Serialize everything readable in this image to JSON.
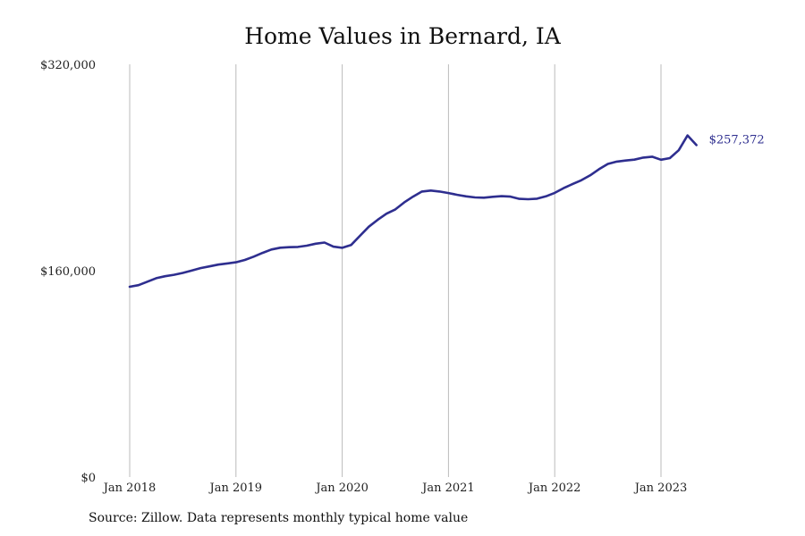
{
  "page": {
    "title": "Home Values in Bernard, IA",
    "source": "Source: Zillow. Data represents monthly typical home value"
  },
  "colors": {
    "line": "#2e2e8f",
    "grid": "#bbbbbb"
  },
  "chart_data": {
    "type": "line",
    "title": "Home Values in Bernard, IA",
    "xlabel": "",
    "ylabel": "",
    "ylim": [
      0,
      320000
    ],
    "y_ticks": [
      0,
      160000,
      320000
    ],
    "y_tick_labels": [
      "$0",
      "$160,000",
      "$320,000"
    ],
    "x_ticks": [
      "2018-01",
      "2019-01",
      "2020-01",
      "2021-01",
      "2022-01",
      "2023-01"
    ],
    "x_tick_labels": [
      "Jan 2018",
      "Jan 2019",
      "Jan 2020",
      "Jan 2021",
      "Jan 2022",
      "Jan 2023"
    ],
    "grid": "vertical",
    "end_label": "$257,372",
    "series": [
      {
        "x": [
          "2018-01",
          "2018-02",
          "2018-03",
          "2018-04",
          "2018-05",
          "2018-06",
          "2018-07",
          "2018-08",
          "2018-09",
          "2018-10",
          "2018-11",
          "2018-12",
          "2019-01",
          "2019-02",
          "2019-03",
          "2019-04",
          "2019-05",
          "2019-06",
          "2019-07",
          "2019-08",
          "2019-09",
          "2019-10",
          "2019-11",
          "2019-12",
          "2020-01",
          "2020-02",
          "2020-03",
          "2020-04",
          "2020-05",
          "2020-06",
          "2020-07",
          "2020-08",
          "2020-09",
          "2020-10",
          "2020-11",
          "2020-12",
          "2021-01",
          "2021-02",
          "2021-03",
          "2021-04",
          "2021-05",
          "2021-06",
          "2021-07",
          "2021-08",
          "2021-09",
          "2021-10",
          "2021-11",
          "2021-12",
          "2022-01",
          "2022-02",
          "2022-03",
          "2022-04",
          "2022-05",
          "2022-06",
          "2022-07",
          "2022-08",
          "2022-09",
          "2022-10",
          "2022-11",
          "2022-12",
          "2023-01",
          "2023-02",
          "2023-03",
          "2023-04",
          "2023-05"
        ],
        "values": [
          147500,
          148800,
          151500,
          154200,
          155700,
          156800,
          158300,
          160100,
          162000,
          163300,
          164700,
          165600,
          166500,
          168300,
          170900,
          173800,
          176400,
          177800,
          178200,
          178400,
          179400,
          180900,
          181800,
          178600,
          177700,
          179900,
          187000,
          194100,
          199400,
          204200,
          207500,
          212900,
          217400,
          221400,
          222100,
          221400,
          220200,
          218800,
          217600,
          216800,
          216600,
          217300,
          217800,
          217400,
          215700,
          215400,
          215800,
          217600,
          220300,
          224000,
          227100,
          230100,
          233900,
          238700,
          242800,
          244600,
          245400,
          246100,
          247700,
          248400,
          246000,
          247300,
          253400,
          264900,
          257372
        ]
      }
    ]
  }
}
